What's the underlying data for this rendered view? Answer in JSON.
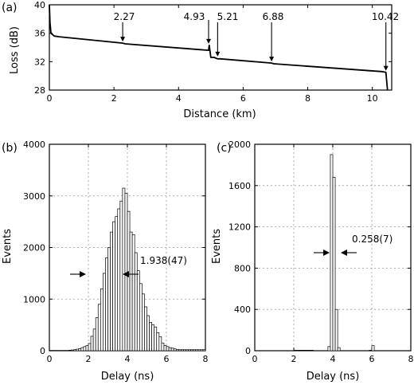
{
  "chart_data": [
    {
      "type": "line",
      "panel_label": "(a)",
      "xlabel": "Distance (km)",
      "ylabel": "Loss (dB)",
      "xlim": [
        0,
        10.6
      ],
      "ylim": [
        28,
        40
      ],
      "xticks": [
        0,
        2,
        4,
        6,
        8,
        10
      ],
      "yticks": [
        28,
        32,
        36,
        40
      ],
      "grid": false,
      "x": [
        0,
        0.02,
        0.05,
        0.15,
        0.3,
        2.27,
        2.35,
        4.93,
        4.95,
        5.0,
        5.1,
        5.21,
        5.3,
        6.88,
        6.95,
        10.3,
        10.42,
        10.45,
        10.47
      ],
      "y": [
        40,
        37.5,
        36.0,
        35.6,
        35.5,
        34.6,
        34.5,
        33.6,
        34.3,
        32.6,
        32.6,
        32.4,
        32.4,
        31.8,
        31.7,
        30.6,
        30.5,
        29.0,
        28
      ],
      "annotations": [
        {
          "label": "2.27",
          "x": 2.27,
          "y": 34.6
        },
        {
          "label": "4.93",
          "x": 4.93,
          "y": 34.3
        },
        {
          "label": "5.21",
          "x": 5.21,
          "y": 32.5
        },
        {
          "label": "6.88",
          "x": 6.88,
          "y": 31.8
        },
        {
          "label": "10.42",
          "x": 10.42,
          "y": 30.5
        }
      ]
    },
    {
      "type": "bar",
      "panel_label": "(b)",
      "xlabel": "Delay (ns)",
      "ylabel": "Events",
      "xlim": [
        0,
        8
      ],
      "ylim": [
        0,
        4000
      ],
      "xticks": [
        0,
        2,
        4,
        6,
        8
      ],
      "yticks": [
        0,
        1000,
        2000,
        3000,
        4000
      ],
      "grid": true,
      "bin_width": 0.125,
      "bin_start": 0,
      "values": [
        5,
        5,
        5,
        5,
        5,
        5,
        5,
        5,
        10,
        15,
        20,
        30,
        40,
        60,
        80,
        100,
        140,
        280,
        420,
        640,
        900,
        1200,
        1500,
        1800,
        2000,
        2300,
        2500,
        2600,
        2750,
        2900,
        3150,
        3050,
        2700,
        2300,
        2250,
        1900,
        1550,
        1300,
        1100,
        850,
        680,
        550,
        500,
        460,
        350,
        270,
        150,
        100,
        80,
        60,
        50,
        35,
        25,
        20,
        20,
        20,
        20,
        20,
        20,
        20,
        20,
        20,
        20,
        20
      ],
      "annotation": "1.938(47)"
    },
    {
      "type": "bar",
      "panel_label": "(c)",
      "xlabel": "Delay (ns)",
      "ylabel": "Events",
      "xlim": [
        0,
        8
      ],
      "ylim": [
        0,
        2000
      ],
      "xticks": [
        0,
        2,
        4,
        6,
        8
      ],
      "yticks": [
        0,
        400,
        800,
        1200,
        1600,
        2000
      ],
      "grid": true,
      "bin_width": 0.125,
      "bin_start": 0,
      "values": [
        0,
        0,
        0,
        0,
        0,
        0,
        0,
        0,
        0,
        0,
        0,
        0,
        0,
        0,
        0,
        0,
        5,
        5,
        5,
        5,
        5,
        5,
        5,
        5,
        0,
        0,
        0,
        0,
        0,
        0,
        40,
        1900,
        1680,
        400,
        30,
        0,
        0,
        0,
        0,
        0,
        0,
        0,
        0,
        0,
        0,
        0,
        0,
        5,
        50,
        0,
        0,
        0,
        0,
        0,
        0,
        0,
        0,
        0,
        0,
        0,
        0,
        0,
        0,
        0
      ],
      "annotation": "0.258(7)"
    }
  ]
}
